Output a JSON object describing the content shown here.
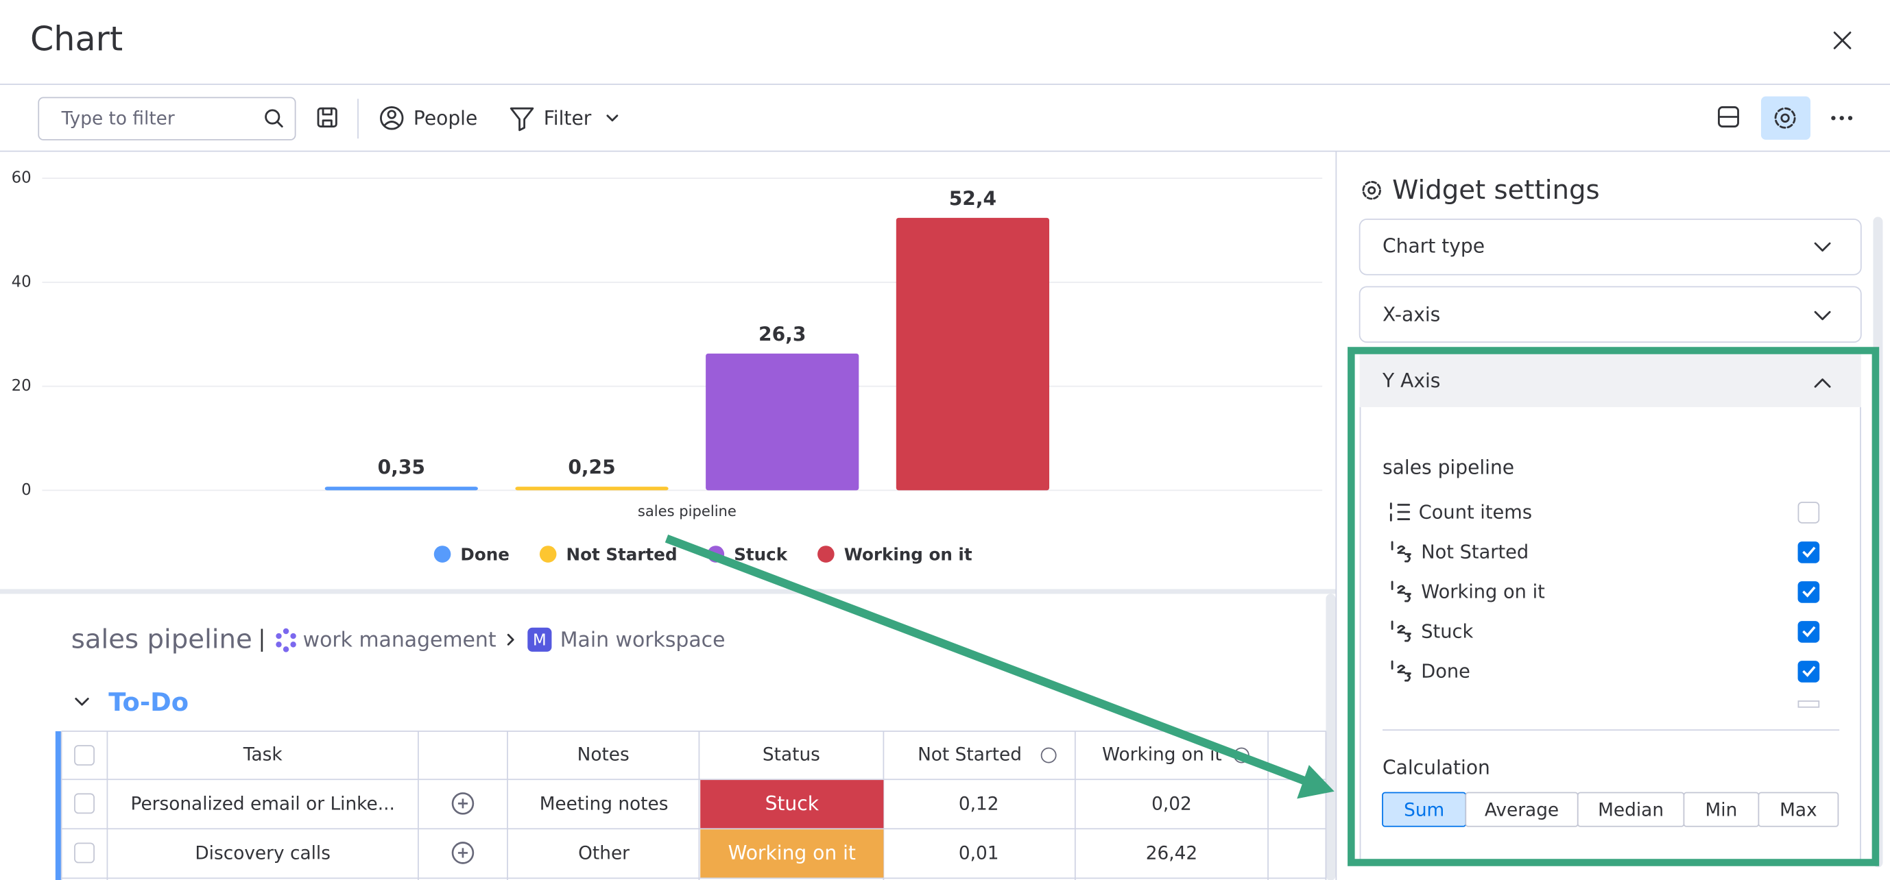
{
  "header": {
    "title": "Chart"
  },
  "toolbar": {
    "search_placeholder": "Type to filter",
    "people": "People",
    "filter": "Filter"
  },
  "chart": {
    "type": "bar",
    "categories": [
      "sales pipeline"
    ],
    "series": [
      {
        "name": "Done",
        "color": "#579bfc",
        "values": [
          0.35
        ],
        "value_labels": [
          "0,35"
        ]
      },
      {
        "name": "Not Started",
        "color": "#fdc631",
        "values": [
          0.25
        ],
        "value_labels": [
          "0,25"
        ]
      },
      {
        "name": "Stuck",
        "color": "#9b5dd9",
        "values": [
          26.3
        ],
        "value_labels": [
          "26,3"
        ]
      },
      {
        "name": "Working on it",
        "color": "#d03e4c",
        "values": [
          52.4
        ],
        "value_labels": [
          "52,4"
        ]
      }
    ],
    "ylim": [
      0,
      60
    ],
    "yticks": [
      0,
      20,
      40,
      60
    ],
    "grid": true
  },
  "board": {
    "name": "sales pipeline",
    "product": "work management",
    "workspace": "Main workspace",
    "avatar": "M",
    "group": "To-Do",
    "columns": [
      "Task",
      "Notes",
      "Status",
      "Not Started",
      "Working on it"
    ],
    "rows": [
      {
        "task": "Personalized email or Linke...",
        "notes": "Meeting notes",
        "status": "Stuck",
        "status_color": "#d03e4c",
        "not_started": "0,12",
        "working_on_it": "0,02"
      },
      {
        "task": "Discovery calls",
        "notes": "Other",
        "status": "Working on it",
        "status_color": "#f0aa4a",
        "not_started": "0,01",
        "working_on_it": "26,42"
      }
    ]
  },
  "settings": {
    "title": "Widget settings",
    "sections": [
      "Chart type",
      "X-axis",
      "Y Axis"
    ],
    "board": "sales pipeline",
    "columns": [
      "Count items",
      "Not Started",
      "Working on it",
      "Stuck",
      "Done"
    ],
    "checked": [
      false,
      true,
      true,
      true,
      true
    ],
    "calculation_label": "Calculation",
    "calculations": [
      "Sum",
      "Average",
      "Median",
      "Min",
      "Max"
    ],
    "selected_calculation": 0
  }
}
